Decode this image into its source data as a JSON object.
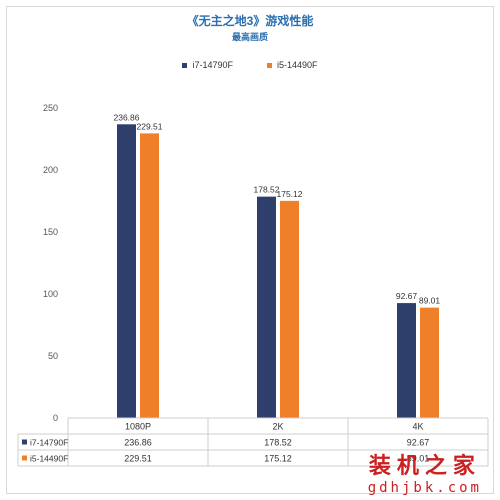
{
  "chart_data": {
    "type": "bar",
    "title": "《无主之地3》游戏性能",
    "subtitle": "最高画质",
    "categories": [
      "1080P",
      "2K",
      "4K"
    ],
    "series": [
      {
        "name": "i7-14790F",
        "color": "#2f3f6b",
        "values": [
          236.86,
          178.52,
          92.67
        ]
      },
      {
        "name": "i5-14490F",
        "color": "#f07f2a",
        "values": [
          229.51,
          175.12,
          89.01
        ]
      }
    ],
    "ylim": [
      0,
      250
    ],
    "yticks": [
      0,
      50,
      100,
      150,
      200,
      250
    ],
    "grid": false,
    "legend_position": "top-center",
    "data_table": true
  },
  "watermark": {
    "text_cn": "装机之家",
    "url": "gdhjbk.com"
  }
}
